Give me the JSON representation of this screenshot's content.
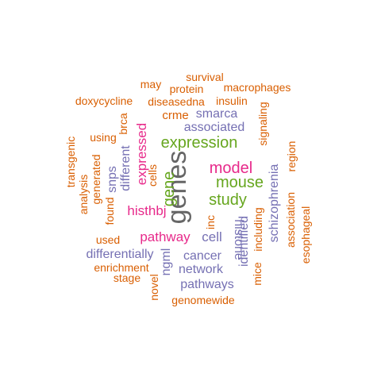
{
  "palette": {
    "gray": "#666666",
    "green": "#66A61E",
    "magenta": "#E7298A",
    "purple": "#7570B3",
    "orange": "#D95F02"
  },
  "words": [
    {
      "text": "genes",
      "color": "gray"
    },
    {
      "text": "expression",
      "color": "green"
    },
    {
      "text": "model",
      "color": "magenta"
    },
    {
      "text": "mouse",
      "color": "green"
    },
    {
      "text": "study",
      "color": "green"
    },
    {
      "text": "gene",
      "color": "green"
    },
    {
      "text": "histhbj",
      "color": "magenta"
    },
    {
      "text": "pathway",
      "color": "magenta"
    },
    {
      "text": "expressed",
      "color": "magenta"
    },
    {
      "text": "associated",
      "color": "purple"
    },
    {
      "text": "smarca",
      "color": "purple"
    },
    {
      "text": "crme",
      "color": "orange"
    },
    {
      "text": "cell",
      "color": "purple"
    },
    {
      "text": "cancer",
      "color": "purple"
    },
    {
      "text": "network",
      "color": "purple"
    },
    {
      "text": "pathways",
      "color": "purple"
    },
    {
      "text": "differentially",
      "color": "purple"
    },
    {
      "text": "different",
      "color": "purple"
    },
    {
      "text": "snps",
      "color": "purple"
    },
    {
      "text": "histone",
      "color": "purple"
    },
    {
      "text": "identified",
      "color": "purple"
    },
    {
      "text": "schizophrenia",
      "color": "purple"
    },
    {
      "text": "ngml",
      "color": "purple"
    },
    {
      "text": "survival",
      "color": "orange"
    },
    {
      "text": "may",
      "color": "orange"
    },
    {
      "text": "protein",
      "color": "orange"
    },
    {
      "text": "macrophages",
      "color": "orange"
    },
    {
      "text": "doxycycline",
      "color": "orange"
    },
    {
      "text": "diseasedna",
      "color": "orange"
    },
    {
      "text": "insulin",
      "color": "orange"
    },
    {
      "text": "signaling",
      "color": "orange"
    },
    {
      "text": "using",
      "color": "orange"
    },
    {
      "text": "brca",
      "color": "orange"
    },
    {
      "text": "transgenic",
      "color": "orange"
    },
    {
      "text": "generated",
      "color": "orange"
    },
    {
      "text": "analysis",
      "color": "orange"
    },
    {
      "text": "found",
      "color": "orange"
    },
    {
      "text": "cells",
      "color": "orange"
    },
    {
      "text": "inc",
      "color": "orange"
    },
    {
      "text": "region",
      "color": "orange"
    },
    {
      "text": "used",
      "color": "orange"
    },
    {
      "text": "enrichment",
      "color": "orange"
    },
    {
      "text": "stage",
      "color": "orange"
    },
    {
      "text": "novel",
      "color": "orange"
    },
    {
      "text": "genomewide",
      "color": "orange"
    },
    {
      "text": "mice",
      "color": "orange"
    },
    {
      "text": "including",
      "color": "orange"
    },
    {
      "text": "association",
      "color": "orange"
    },
    {
      "text": "esophageal",
      "color": "orange"
    }
  ]
}
